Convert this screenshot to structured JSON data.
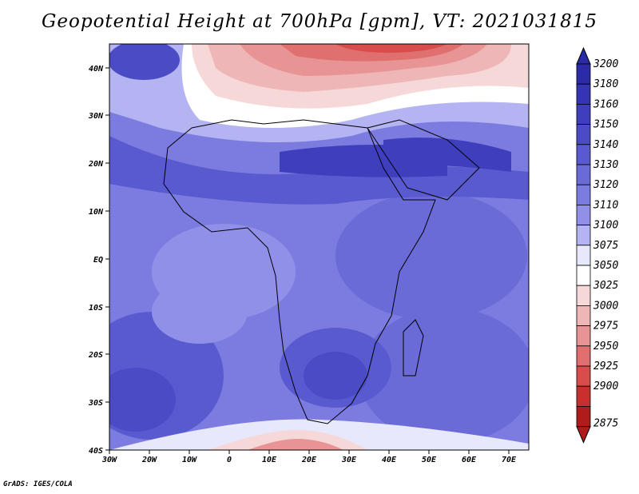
{
  "title": "Geopotential Height at 700hPa [gpm], VT: 2021031815",
  "credit": "GrADS: IGES/COLA",
  "axes": {
    "lon_labels": [
      "30W",
      "20W",
      "10W",
      "0",
      "10E",
      "20E",
      "30E",
      "40E",
      "50E",
      "60E",
      "70E"
    ],
    "lat_labels": [
      "40N",
      "30N",
      "20N",
      "10N",
      "EQ",
      "10S",
      "20S",
      "30S",
      "40S"
    ]
  },
  "colorbar": {
    "levels": [
      "3200",
      "3180",
      "3160",
      "3150",
      "3140",
      "3130",
      "3120",
      "3110",
      "3100",
      "3075",
      "3050",
      "3025",
      "3000",
      "2975",
      "2950",
      "2925",
      "2900",
      "2875"
    ],
    "colors": [
      "#2b2ba8",
      "#3434b4",
      "#3f3fbe",
      "#4b4bc6",
      "#5a5ad0",
      "#6b6bd8",
      "#7c7ce0",
      "#9090e8",
      "#b4b4f2",
      "#e8e8fc",
      "#ffffff",
      "#f6d8d8",
      "#eeb6b6",
      "#e89494",
      "#e07070",
      "#d84c4c",
      "#c83030",
      "#b01c1c"
    ]
  },
  "field": {
    "name": "Geopotential Height",
    "level": "700hPa",
    "units": "gpm",
    "valid_time": "2021031815"
  }
}
